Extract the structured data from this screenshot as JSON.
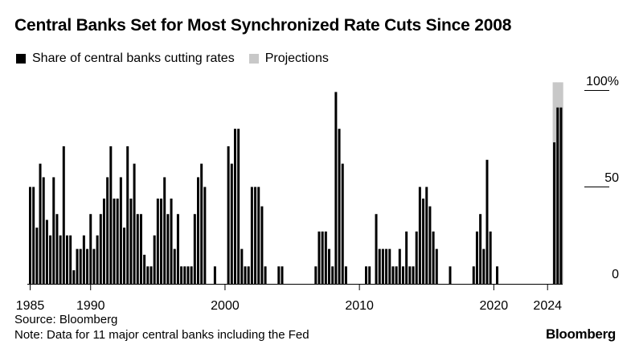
{
  "title": "Central Banks Set for Most Synchronized Rate Cuts Since 2008",
  "legend": [
    {
      "label": "Share of central banks cutting rates",
      "color": "#000000"
    },
    {
      "label": "Projections",
      "color": "#c8c8c8"
    }
  ],
  "source": "Source: Bloomberg",
  "note": "Note: Data for 11 major central banks including the Fed",
  "brand": "Bloomberg",
  "chart_data": {
    "type": "bar",
    "x_unit": "half-year periods starting 1985",
    "x_ticks": [
      "1985",
      "1990",
      "2000",
      "2010",
      "2020",
      "2024"
    ],
    "y_ticks": [
      "100%",
      "50",
      "0"
    ],
    "ylim": [
      0,
      100
    ],
    "grid": false,
    "legend_placement": "top-left",
    "series": [
      {
        "name": "Share of central banks cutting rates",
        "color": "#000000",
        "values": [
          50,
          50,
          29,
          62,
          55,
          33,
          25,
          55,
          36,
          25,
          71,
          25,
          25,
          7,
          18,
          18,
          25,
          18,
          36,
          18,
          25,
          36,
          44,
          55,
          71,
          44,
          44,
          55,
          29,
          71,
          44,
          62,
          36,
          36,
          15,
          9,
          9,
          25,
          44,
          44,
          55,
          36,
          44,
          18,
          36,
          9,
          9,
          9,
          9,
          36,
          55,
          62,
          50,
          0,
          0,
          9,
          0,
          0,
          0,
          71,
          62,
          80,
          80,
          18,
          9,
          9,
          50,
          50,
          50,
          40,
          9,
          0,
          0,
          0,
          9,
          9,
          0,
          0,
          0,
          0,
          0,
          0,
          0,
          0,
          0,
          9,
          27,
          27,
          27,
          18,
          9,
          99,
          80,
          62,
          9,
          0,
          0,
          0,
          0,
          0,
          9,
          9,
          0,
          36,
          18,
          18,
          18,
          18,
          9,
          9,
          18,
          9,
          27,
          9,
          9,
          27,
          50,
          44,
          50,
          40,
          27,
          18,
          0,
          0,
          0,
          9,
          0,
          0,
          0,
          0,
          0,
          0,
          9,
          27,
          36,
          18,
          64,
          27,
          0,
          9,
          0,
          0,
          0,
          0,
          0,
          0,
          0,
          0,
          0,
          0,
          0,
          0,
          0,
          0,
          0,
          0,
          73,
          91,
          91,
          0
        ]
      },
      {
        "name": "Projections",
        "color": "#c8c8c8",
        "projection_start_index": 156,
        "values": [
          104,
          104,
          104
        ]
      }
    ]
  }
}
